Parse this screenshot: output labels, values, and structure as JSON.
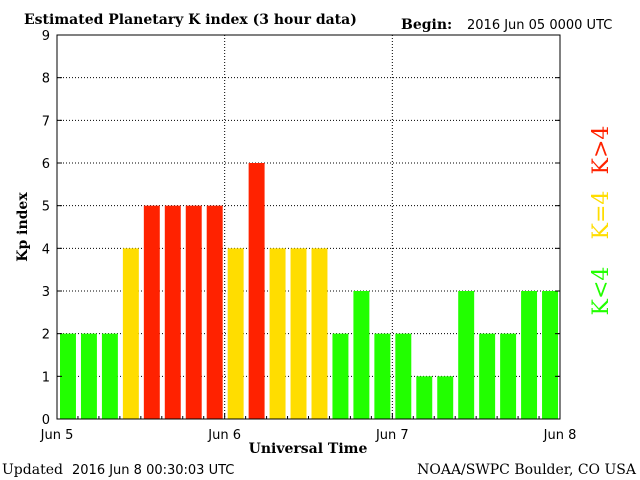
{
  "header": {
    "title": "Estimated Planetary K index (3 hour data)",
    "begin_label": "Begin:",
    "begin_value": "2016 Jun 05 0000 UTC"
  },
  "footer": {
    "updated_label": "Updated",
    "updated_value": "2016 Jun  8 00:30:03 UTC",
    "source": "NOAA/SWPC Boulder, CO USA"
  },
  "legend": [
    {
      "label": "K>4",
      "color": "#ff2200"
    },
    {
      "label": "K=4",
      "color": "#ffdd00"
    },
    {
      "label": "K<4",
      "color": "#22ff00"
    }
  ],
  "chart_data": {
    "type": "bar",
    "title": "Estimated Planetary K index (3 hour data)",
    "xlabel": "Universal Time",
    "ylabel": "Kp index",
    "ylim": [
      0,
      9
    ],
    "yticks": [
      "0",
      "1",
      "2",
      "3",
      "4",
      "5",
      "6",
      "7",
      "8",
      "9"
    ],
    "xticks": [
      "Jun 5",
      "Jun 6",
      "Jun 7",
      "Jun 8"
    ],
    "grid": true,
    "values": [
      2,
      2,
      2,
      4,
      5,
      5,
      5,
      5,
      4,
      6,
      4,
      4,
      4,
      2,
      3,
      2,
      2,
      1,
      1,
      3,
      2,
      2,
      3,
      3
    ],
    "colors": {
      "below_4": "#22ff00",
      "equal_4": "#ffdd00",
      "above_4": "#ff2200"
    }
  }
}
